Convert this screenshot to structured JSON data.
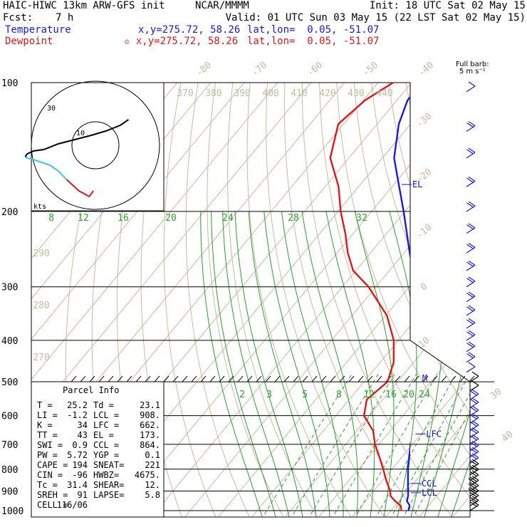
{
  "header": {
    "model": "HAIC-HIWC 13km ARW-GFS init",
    "org": "NCAR/MMMM",
    "init": "Init: 18 UTC Sat 02 May 15",
    "fcst_label": "Fcst:",
    "fcst_value": "7 h",
    "valid": "Valid: 01 UTC Sun 03 May 15 (22 LST Sat 02 May 15)",
    "temp_label": "Temperature",
    "temp_xy": "x,y=275.72, 58.26",
    "temp_latlon": "lat,lon=  0.05, -51.07",
    "dew_label": "Dewpoint",
    "dew_xy": "✫ x,y=275.72, 58.26",
    "dew_latlon": "lat,lon=  0.05, -51.07",
    "barb_legend": "Full barb:",
    "barb_unit": "5 m s⁻¹"
  },
  "colors": {
    "temperature": "#1a1adc",
    "dewpoint": "#e01818",
    "isotherm": "#c9b9a1",
    "mixing_ratio": "#2aa12a",
    "parcel_label": "#1010d0"
  },
  "chart_data": {
    "type": "line",
    "title": "Skew-T log-P sounding",
    "pressure_levels": [
      100,
      200,
      300,
      400,
      500,
      600,
      700,
      800,
      900,
      1000
    ],
    "pressure_labels": [
      "100",
      "200",
      "300",
      "400",
      "500",
      "600",
      "700",
      "800",
      "900",
      "1000"
    ],
    "top_isotherm_labels": [
      "-80",
      "-70",
      "-60",
      "-50",
      "-40"
    ],
    "right_isotherm_labels": [
      "-30",
      "-20",
      "-10",
      "0",
      "10"
    ],
    "lower_right_isotherm_labels": [
      "30",
      "40"
    ],
    "theta_labels": [
      "370",
      "380",
      "390",
      "400",
      "410",
      "420",
      "430",
      "440"
    ],
    "theta_side_labels": [
      "290",
      "280",
      "270"
    ],
    "mixing_ratio_labels_upper": [
      "8",
      "12",
      "16",
      "20",
      "24",
      "28",
      "32"
    ],
    "mixing_ratio_labels_lower": [
      "2",
      "3",
      "5",
      "8",
      "12",
      "16",
      "20",
      "24"
    ],
    "series": [
      {
        "name": "Temperature",
        "pressure": [
          1000,
          975,
          950,
          925,
          900,
          875,
          850,
          800,
          750,
          700,
          650,
          600,
          550,
          500,
          450,
          400,
          350,
          300,
          250,
          200,
          175,
          150,
          125,
          110,
          100
        ],
        "value": [
          25.2,
          24.5,
          22.4,
          21.5,
          20.3,
          18.9,
          17.6,
          14.8,
          12.2,
          9.4,
          6.8,
          3.4,
          0.0,
          -4.5,
          -8.4,
          -14.0,
          -20.4,
          -28.0,
          -38.3,
          -50.4,
          -57.9,
          -66.5,
          -73.5,
          -76.8,
          -76.8
        ]
      },
      {
        "name": "Dewpoint",
        "pressure": [
          1000,
          975,
          950,
          925,
          900,
          850,
          800,
          750,
          700,
          650,
          600,
          550,
          500,
          450,
          400,
          350,
          300,
          275,
          250,
          225,
          200,
          175,
          150,
          125,
          110,
          100
        ],
        "value": [
          23.1,
          21.8,
          18.9,
          16.3,
          14.9,
          11.1,
          7.4,
          3.3,
          -1.2,
          -5.2,
          -11.6,
          -14.8,
          -13.0,
          -16.0,
          -21.4,
          -29.6,
          -42.2,
          -50.8,
          -56.8,
          -62.4,
          -69.2,
          -76.0,
          -85.6,
          -91.6,
          -89.5,
          -85.5
        ]
      }
    ],
    "parcel_levels": {
      "M": 490,
      "EL": 173,
      "LFC": 662,
      "CCL": 864,
      "LCL": 908
    },
    "parcel_info": {
      "title": "Parcel Info",
      "rows": [
        [
          "T  =",
          "25.2",
          "Td =",
          "23.1"
        ],
        [
          "LI =",
          "-1.2",
          "LCL =",
          "908."
        ],
        [
          "K  =",
          "34",
          "LFC =",
          "662."
        ],
        [
          "TT =",
          "43",
          "EL =",
          "173."
        ],
        [
          "SWI =",
          "0.9",
          "CCL =",
          "864."
        ],
        [
          "PW =",
          "5.72",
          "YGP =",
          "0.1"
        ],
        [
          "CAPE =",
          "194",
          "SNEAT=",
          "221"
        ],
        [
          "CIN =",
          "-96",
          "HWBZ=",
          "4675."
        ],
        [
          "Tc =",
          "31.4",
          "SHEAR=",
          "12."
        ],
        [
          "SREH =",
          "91",
          "LAPSE=",
          "5.8"
        ],
        [
          "CELL =",
          "116/06",
          "",
          ""
        ]
      ]
    },
    "hodograph": {
      "unit_label": "kts",
      "ring_labels": [
        "10",
        "30"
      ],
      "trace_u": [
        -1,
        -3,
        -8,
        -14,
        -18,
        -22,
        -26,
        -30,
        -33,
        -34,
        -33,
        -30,
        -25,
        -18,
        -10,
        -2,
        5,
        12,
        16
      ],
      "trace_v": [
        -32,
        -36,
        -32,
        -24,
        -18,
        -14,
        -12,
        -10,
        -9,
        -8,
        -6,
        -4,
        -3,
        1,
        4,
        7,
        10,
        14,
        18
      ],
      "trace_colors": [
        "#e01818",
        "#3cc8e0",
        "#000000"
      ]
    },
    "wind_barbs": {
      "pressure": [
        105,
        130,
        150,
        175,
        200,
        225,
        250,
        275,
        300,
        325,
        350,
        375,
        400,
        425,
        450,
        475,
        500,
        525,
        550,
        575,
        600,
        625,
        650,
        675,
        700,
        725,
        750,
        775,
        800,
        825,
        850,
        875,
        900,
        925,
        950,
        975,
        1000
      ],
      "speed_ms": [
        5,
        10,
        10,
        10,
        10,
        10,
        10,
        10,
        10,
        10,
        10,
        10,
        10,
        10,
        10,
        5,
        5,
        5,
        10,
        10,
        10,
        10,
        10,
        10,
        10,
        10,
        10,
        10,
        10,
        10,
        10,
        15,
        15,
        15,
        10,
        10,
        10
      ],
      "color": [
        "#1a1adc",
        "#1a1adc",
        "#1a1adc",
        "#1a1adc",
        "#1a1adc",
        "#1a1adc",
        "#1a1adc",
        "#1a1adc",
        "#1a1adc",
        "#1a1adc",
        "#1a1adc",
        "#1a1adc",
        "#1a1adc",
        "#1a1adc",
        "#1a1adc",
        "#1a1adc",
        "#000000",
        "#000000",
        "#1a1adc",
        "#1a1adc",
        "#1a1adc",
        "#1a1adc",
        "#1a1adc",
        "#1a1adc",
        "#1a1adc",
        "#1a1adc",
        "#1a1adc",
        "#1a1adc",
        "#000000",
        "#000000",
        "#000000",
        "#000000",
        "#000000",
        "#000000",
        "#000000",
        "#000000",
        "#000000"
      ]
    }
  }
}
